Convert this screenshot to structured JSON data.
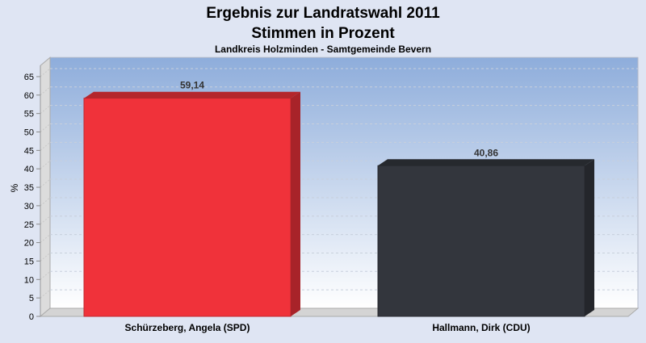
{
  "chart_data": {
    "type": "bar",
    "title": "Ergebnis zur Landratswahl 2011",
    "subtitle_line2": "Stimmen in Prozent",
    "subtitle": "Landkreis Holzminden - Samtgemeinde Bevern",
    "xlabel": "",
    "ylabel": "%",
    "ylim": [
      0,
      68
    ],
    "yticks": [
      0,
      5,
      10,
      15,
      20,
      25,
      30,
      35,
      40,
      45,
      50,
      55,
      60,
      65
    ],
    "grid": true,
    "categories": [
      "Schürzeberg, Angela (SPD)",
      "Hallmann, Dirk (CDU)"
    ],
    "values": [
      59.14,
      40.86
    ],
    "value_labels": [
      "59,14",
      "40,86"
    ],
    "colors": [
      "#f0323a",
      "#33363d"
    ]
  }
}
